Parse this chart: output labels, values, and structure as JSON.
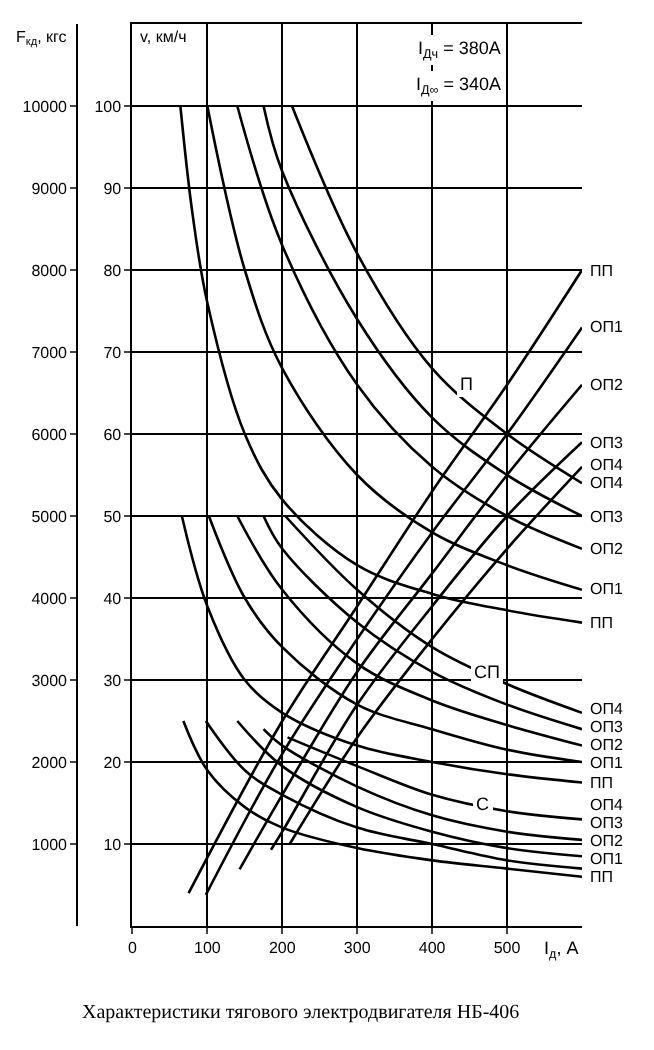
{
  "chart_data": {
    "type": "line",
    "xlabel": "I$_{д}$, А",
    "ylabel": "F$_{кд}$, кгс",
    "y2label": "v, км/ч",
    "xlim": [
      0,
      600
    ],
    "xticks": [
      0,
      100,
      200,
      300,
      400,
      500
    ],
    "ylim": [
      0,
      11000
    ],
    "yticks": [
      1000,
      2000,
      3000,
      4000,
      5000,
      6000,
      7000,
      8000,
      9000,
      10000
    ],
    "y2lim": [
      0,
      110
    ],
    "y2ticks": [
      10,
      20,
      30,
      40,
      50,
      60,
      70,
      80,
      90,
      100
    ],
    "grid": true,
    "legend": false,
    "marker": "none",
    "line_style": "solid",
    "annotations": [
      "I$_{Дч}$ = 380А",
      "I$_{Д∞}$ = 340А",
      "Характеристики тягового электродвигателя НБ-406",
      {
        "text": "П",
        "x": 446,
        "y": 6600
      },
      {
        "text": "СП",
        "x": 473,
        "y": 3100
      },
      {
        "text": "С",
        "x": 469,
        "y": 1500
      }
    ],
    "series": [
      {
        "name": "ПП",
        "color": "#000000",
        "x": [
          75,
          200,
          300,
          400,
          500,
          600
        ],
        "values": [
          400,
          2500,
          3900,
          5300,
          6600,
          8000
        ]
      },
      {
        "name": "ОП1",
        "color": "#000000",
        "x": [
          98,
          200,
          300,
          400,
          500,
          600
        ],
        "values": [
          380,
          2100,
          3500,
          4800,
          6000,
          7300
        ]
      },
      {
        "name": "ОП2",
        "color": "#000000",
        "x": [
          143,
          200,
          300,
          400,
          500,
          600
        ],
        "values": [
          690,
          1600,
          3100,
          4300,
          5500,
          6600
        ]
      },
      {
        "name": "ОП3",
        "color": "#000000",
        "x": [
          185,
          200,
          300,
          400,
          500,
          600
        ],
        "values": [
          930,
          1150,
          2700,
          3900,
          5000,
          5900
        ]
      },
      {
        "name": "ОП4",
        "color": "#000000",
        "x": [
          210,
          300,
          400,
          500,
          600
        ],
        "values": [
          1000,
          2300,
          3500,
          4600,
          5600
        ]
      },
      {
        "name": "ПП",
        "color": "#000000",
        "axis": "y2",
        "x": [
          64,
          80,
          100,
          150,
          200,
          300,
          400,
          500,
          600
        ],
        "values": [
          100,
          87,
          76,
          60,
          52,
          44,
          40.5,
          38.5,
          37
        ]
      },
      {
        "name": "ОП1",
        "color": "#000000",
        "axis": "y2",
        "x": [
          100,
          150,
          200,
          300,
          400,
          500,
          600
        ],
        "values": [
          100,
          80,
          68,
          55,
          48,
          44,
          41
        ]
      },
      {
        "name": "ОП2",
        "color": "#000000",
        "axis": "y2",
        "x": [
          140,
          200,
          300,
          400,
          500,
          600
        ],
        "values": [
          100,
          83,
          66,
          56,
          50,
          46
        ]
      },
      {
        "name": "ОП3",
        "color": "#000000",
        "axis": "y2",
        "x": [
          175,
          200,
          300,
          400,
          500,
          600
        ],
        "values": [
          100,
          92,
          74,
          62,
          55,
          50
        ]
      },
      {
        "name": "ОП4",
        "color": "#000000",
        "axis": "y2",
        "x": [
          213,
          300,
          400,
          500,
          600
        ],
        "values": [
          100,
          82,
          68,
          60,
          54
        ]
      },
      {
        "name": "ПП",
        "color": "#000000",
        "axis": "y2",
        "x": [
          66,
          100,
          150,
          200,
          300,
          400,
          500,
          600
        ],
        "values": [
          50,
          39,
          30,
          26,
          22,
          20,
          18.5,
          17.5
        ]
      },
      {
        "name": "ОП1",
        "color": "#000000",
        "axis": "y2",
        "x": [
          102,
          150,
          200,
          300,
          400,
          500,
          600
        ],
        "values": [
          50,
          40,
          34,
          27,
          24,
          21.5,
          20
        ]
      },
      {
        "name": "ОП2",
        "color": "#000000",
        "axis": "y2",
        "x": [
          140,
          200,
          300,
          400,
          500,
          600
        ],
        "values": [
          50,
          41,
          32,
          27.5,
          24.5,
          22
        ]
      },
      {
        "name": "ОП3",
        "color": "#000000",
        "axis": "y2",
        "x": [
          175,
          200,
          300,
          400,
          500,
          600
        ],
        "values": [
          50,
          46,
          37,
          31,
          27,
          24
        ]
      },
      {
        "name": "ОП4",
        "color": "#000000",
        "axis": "y2",
        "x": [
          204,
          300,
          400,
          500,
          600
        ],
        "values": [
          50,
          41,
          34,
          29.5,
          26
        ]
      },
      {
        "name": "ПП",
        "color": "#000000",
        "axis": "y2",
        "x": [
          68,
          100,
          150,
          200,
          300,
          400,
          500,
          600
        ],
        "values": [
          25,
          19,
          14.5,
          12,
          9.5,
          8,
          7,
          6
        ]
      },
      {
        "name": "ОП1",
        "color": "#000000",
        "axis": "y2",
        "x": [
          98,
          150,
          200,
          300,
          400,
          500,
          600
        ],
        "values": [
          25,
          19,
          16,
          12,
          10,
          8,
          7
        ]
      },
      {
        "name": "ОП2",
        "color": "#000000",
        "axis": "y2",
        "x": [
          140,
          200,
          300,
          400,
          500,
          600
        ],
        "values": [
          25,
          19.5,
          14.5,
          11.5,
          9.5,
          8.5
        ]
      },
      {
        "name": "ОП3",
        "color": "#000000",
        "axis": "y2",
        "x": [
          175,
          200,
          300,
          400,
          500,
          600
        ],
        "values": [
          24,
          22,
          17,
          13.5,
          11.5,
          10.5
        ]
      },
      {
        "name": "ОП4",
        "color": "#000000",
        "axis": "y2",
        "x": [
          207,
          300,
          400,
          500,
          600
        ],
        "values": [
          23,
          19.5,
          16,
          14,
          13
        ]
      }
    ]
  }
}
